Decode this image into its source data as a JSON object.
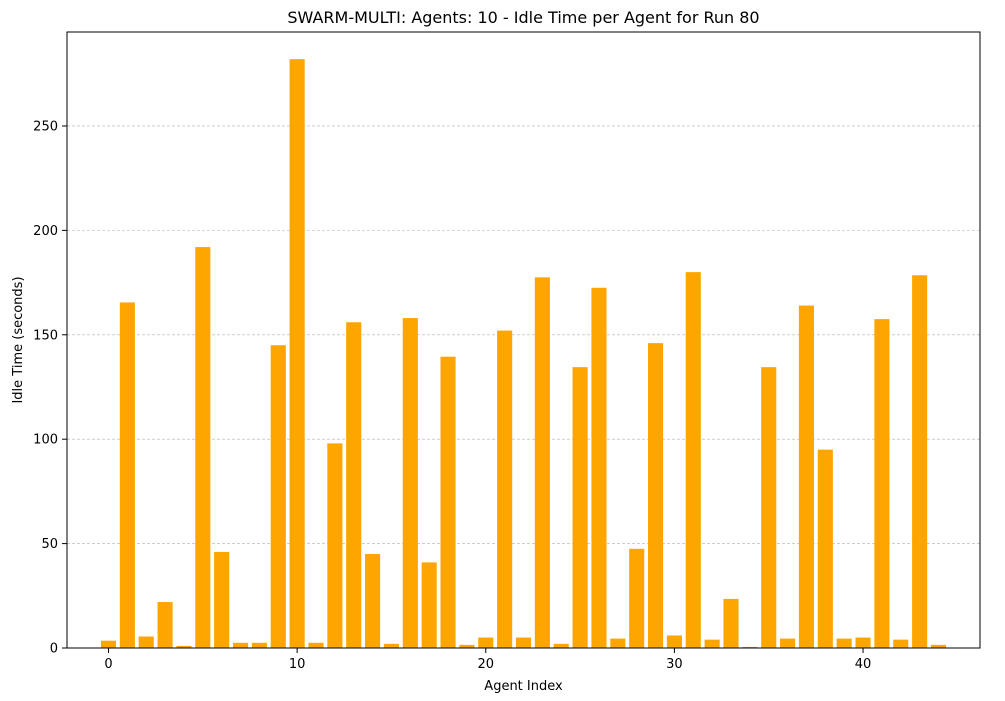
{
  "chart_data": {
    "type": "bar",
    "title": "SWARM-MULTI: Agents: 10 - Idle Time per Agent for Run 80",
    "xlabel": "Agent Index",
    "ylabel": "Idle Time (seconds)",
    "xlim": [
      -2.2,
      46.2
    ],
    "ylim": [
      0,
      295
    ],
    "x_ticks": [
      0,
      10,
      20,
      30,
      40
    ],
    "y_ticks": [
      0,
      50,
      100,
      150,
      200,
      250
    ],
    "grid": "y-dashed",
    "bar_color": "#ffa500",
    "grid_color": "#b0b0b0",
    "categories": [
      0,
      1,
      2,
      3,
      4,
      5,
      6,
      7,
      8,
      9,
      10,
      11,
      12,
      13,
      14,
      15,
      16,
      17,
      18,
      19,
      20,
      21,
      22,
      23,
      24,
      25,
      26,
      27,
      28,
      29,
      30,
      31,
      32,
      33,
      34,
      35,
      36,
      37,
      38,
      39,
      40,
      41,
      42,
      43,
      44
    ],
    "values": [
      3.5,
      165.5,
      5.5,
      22,
      1,
      192,
      46,
      2.5,
      2.5,
      145,
      282,
      2.5,
      98,
      156,
      45,
      2,
      158,
      41,
      139.5,
      1.5,
      5,
      152,
      5,
      177.5,
      2,
      134.5,
      172.5,
      4.5,
      47.5,
      146,
      6,
      180,
      4,
      23.5,
      0.5,
      134.5,
      4.5,
      164,
      95,
      4.5,
      5,
      157.5,
      4,
      178.5,
      1.5
    ]
  }
}
